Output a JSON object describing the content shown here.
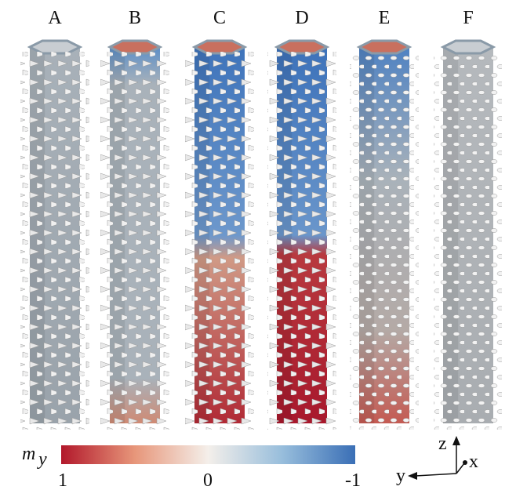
{
  "panels": [
    "A",
    "B",
    "C",
    "D",
    "E",
    "F"
  ],
  "colorbar": {
    "symbol": "m",
    "subscript": "y",
    "ticks": [
      "1",
      "0",
      "-1"
    ]
  },
  "axes": {
    "z": "z",
    "x": "x",
    "y": "y"
  }
}
